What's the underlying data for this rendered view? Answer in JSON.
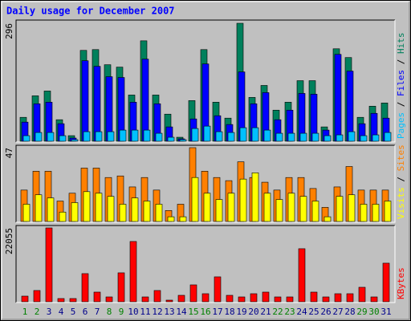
{
  "legend_separator": " / ",
  "chart_data": [
    {
      "type": "bar",
      "title": "Daily usage for December 2007",
      "ylim": [
        0,
        296
      ],
      "yticks": [
        296
      ],
      "series": [
        {
          "name": "Hits",
          "color": "#00805c",
          "values": [
            60,
            114,
            126,
            54,
            14,
            228,
            230,
            192,
            186,
            116,
            252,
            116,
            68,
            10,
            102,
            230,
            98,
            58,
            296,
            110,
            140,
            78,
            98,
            152,
            152,
            36,
            232,
            210,
            60,
            88,
            96
          ]
        },
        {
          "name": "Files",
          "color": "#0000ff",
          "values": [
            48,
            94,
            98,
            44,
            8,
            202,
            188,
            162,
            160,
            98,
            206,
            94,
            36,
            6,
            56,
            194,
            64,
            42,
            174,
            94,
            122,
            54,
            78,
            120,
            118,
            28,
            218,
            176,
            44,
            70,
            58
          ]
        },
        {
          "name": "Pages",
          "color": "#00c0ff",
          "values": [
            14,
            22,
            22,
            14,
            4,
            24,
            24,
            24,
            28,
            28,
            28,
            20,
            10,
            4,
            32,
            38,
            24,
            22,
            34,
            34,
            28,
            20,
            20,
            20,
            20,
            14,
            16,
            24,
            14,
            16,
            22
          ]
        }
      ]
    },
    {
      "type": "bar",
      "ylim": [
        0,
        47
      ],
      "yticks": [
        47
      ],
      "series": [
        {
          "name": "Sites",
          "color": "#ff8000",
          "values": [
            20,
            32,
            32,
            13,
            18,
            34,
            34,
            28,
            29,
            22,
            28,
            20,
            7,
            11,
            47,
            32,
            28,
            26,
            38,
            28,
            25,
            20,
            28,
            28,
            21,
            9,
            22,
            35,
            20,
            20,
            20
          ]
        },
        {
          "name": "Visits",
          "color": "#ffff00",
          "values": [
            11,
            17,
            15,
            6,
            12,
            19,
            18,
            16,
            11,
            15,
            13,
            11,
            3,
            3,
            28,
            18,
            14,
            18,
            27,
            31,
            18,
            14,
            18,
            16,
            13,
            3,
            16,
            17,
            11,
            11,
            13
          ]
        }
      ]
    },
    {
      "type": "bar",
      "ylim": [
        0,
        22055
      ],
      "yticks": [
        22055
      ],
      "categories": [
        "1",
        "2",
        "3",
        "4",
        "5",
        "6",
        "7",
        "8",
        "9",
        "10",
        "11",
        "12",
        "13",
        "14",
        "15",
        "16",
        "17",
        "18",
        "19",
        "20",
        "21",
        "22",
        "23",
        "24",
        "25",
        "26",
        "27",
        "28",
        "29",
        "30",
        "31"
      ],
      "category_colors": [
        "#008000",
        "#008000",
        "#00008b",
        "#00008b",
        "#00008b",
        "#00008b",
        "#00008b",
        "#008000",
        "#008000",
        "#00008b",
        "#00008b",
        "#00008b",
        "#00008b",
        "#00008b",
        "#008000",
        "#008000",
        "#00008b",
        "#00008b",
        "#00008b",
        "#00008b",
        "#00008b",
        "#008000",
        "#008000",
        "#00008b",
        "#00008b",
        "#00008b",
        "#00008b",
        "#00008b",
        "#008000",
        "#008000",
        "#00008b"
      ],
      "series": [
        {
          "name": "KBytes",
          "color": "#ff0000",
          "values": [
            1680,
            3360,
            22055,
            960,
            960,
            8400,
            2880,
            1440,
            8640,
            18000,
            1440,
            3360,
            480,
            1920,
            5040,
            2400,
            7440,
            1920,
            1440,
            2400,
            2880,
            1440,
            1440,
            15840,
            2880,
            1440,
            2400,
            2400,
            4320,
            1440,
            11520
          ]
        }
      ]
    }
  ]
}
